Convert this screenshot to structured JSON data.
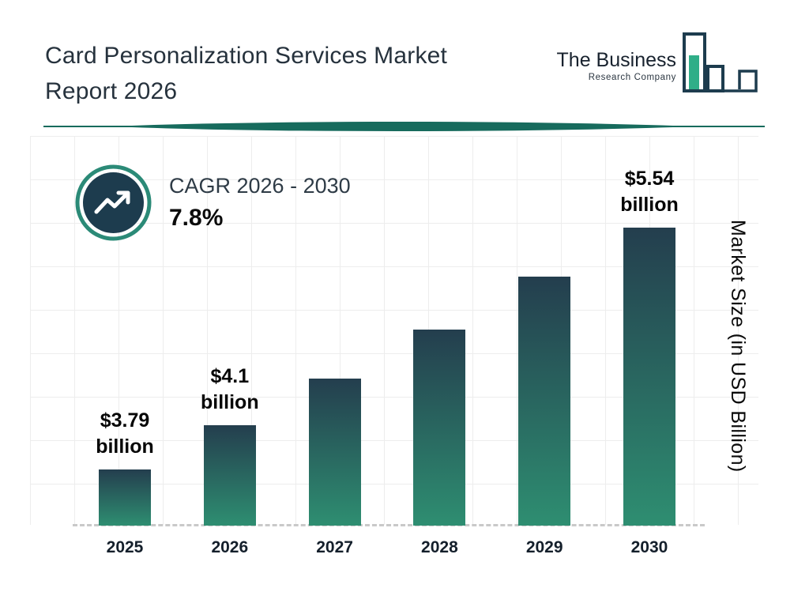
{
  "header": {
    "title_line1": "Card Personalization Services Market",
    "title_line2": "Report 2026"
  },
  "logo": {
    "line1": "The Business",
    "line2": "Research Company"
  },
  "cagr": {
    "label": "CAGR 2026 - 2030",
    "value": "7.8%"
  },
  "colors": {
    "dark_navy": "#1d3c4e",
    "teal": "#2f8f72",
    "divider_teal": "#176b5d",
    "ring_teal": "#2b8a77",
    "grid": "#ededed"
  },
  "chart_data": {
    "type": "bar",
    "title": "Card Personalization Services Market Report 2026",
    "categories": [
      "2025",
      "2026",
      "2027",
      "2028",
      "2029",
      "2030"
    ],
    "values": [
      3.79,
      4.1,
      4.42,
      4.76,
      5.13,
      5.54
    ],
    "bar_labels": [
      {
        "value": "$3.79",
        "unit": "billion"
      },
      {
        "value": "$4.1",
        "unit": "billion"
      },
      null,
      null,
      null,
      {
        "value": "$5.54",
        "unit": "billion"
      }
    ],
    "xlabel": "",
    "ylabel": "Market Size (in USD Billion)",
    "ylim": [
      3.4,
      5.9
    ],
    "grid": true,
    "legend": "none",
    "annotations": [
      "CAGR 2026 - 2030: 7.8%"
    ],
    "bar_gradient": {
      "top": "#243e4e",
      "bottom": "#2e8e71"
    }
  }
}
